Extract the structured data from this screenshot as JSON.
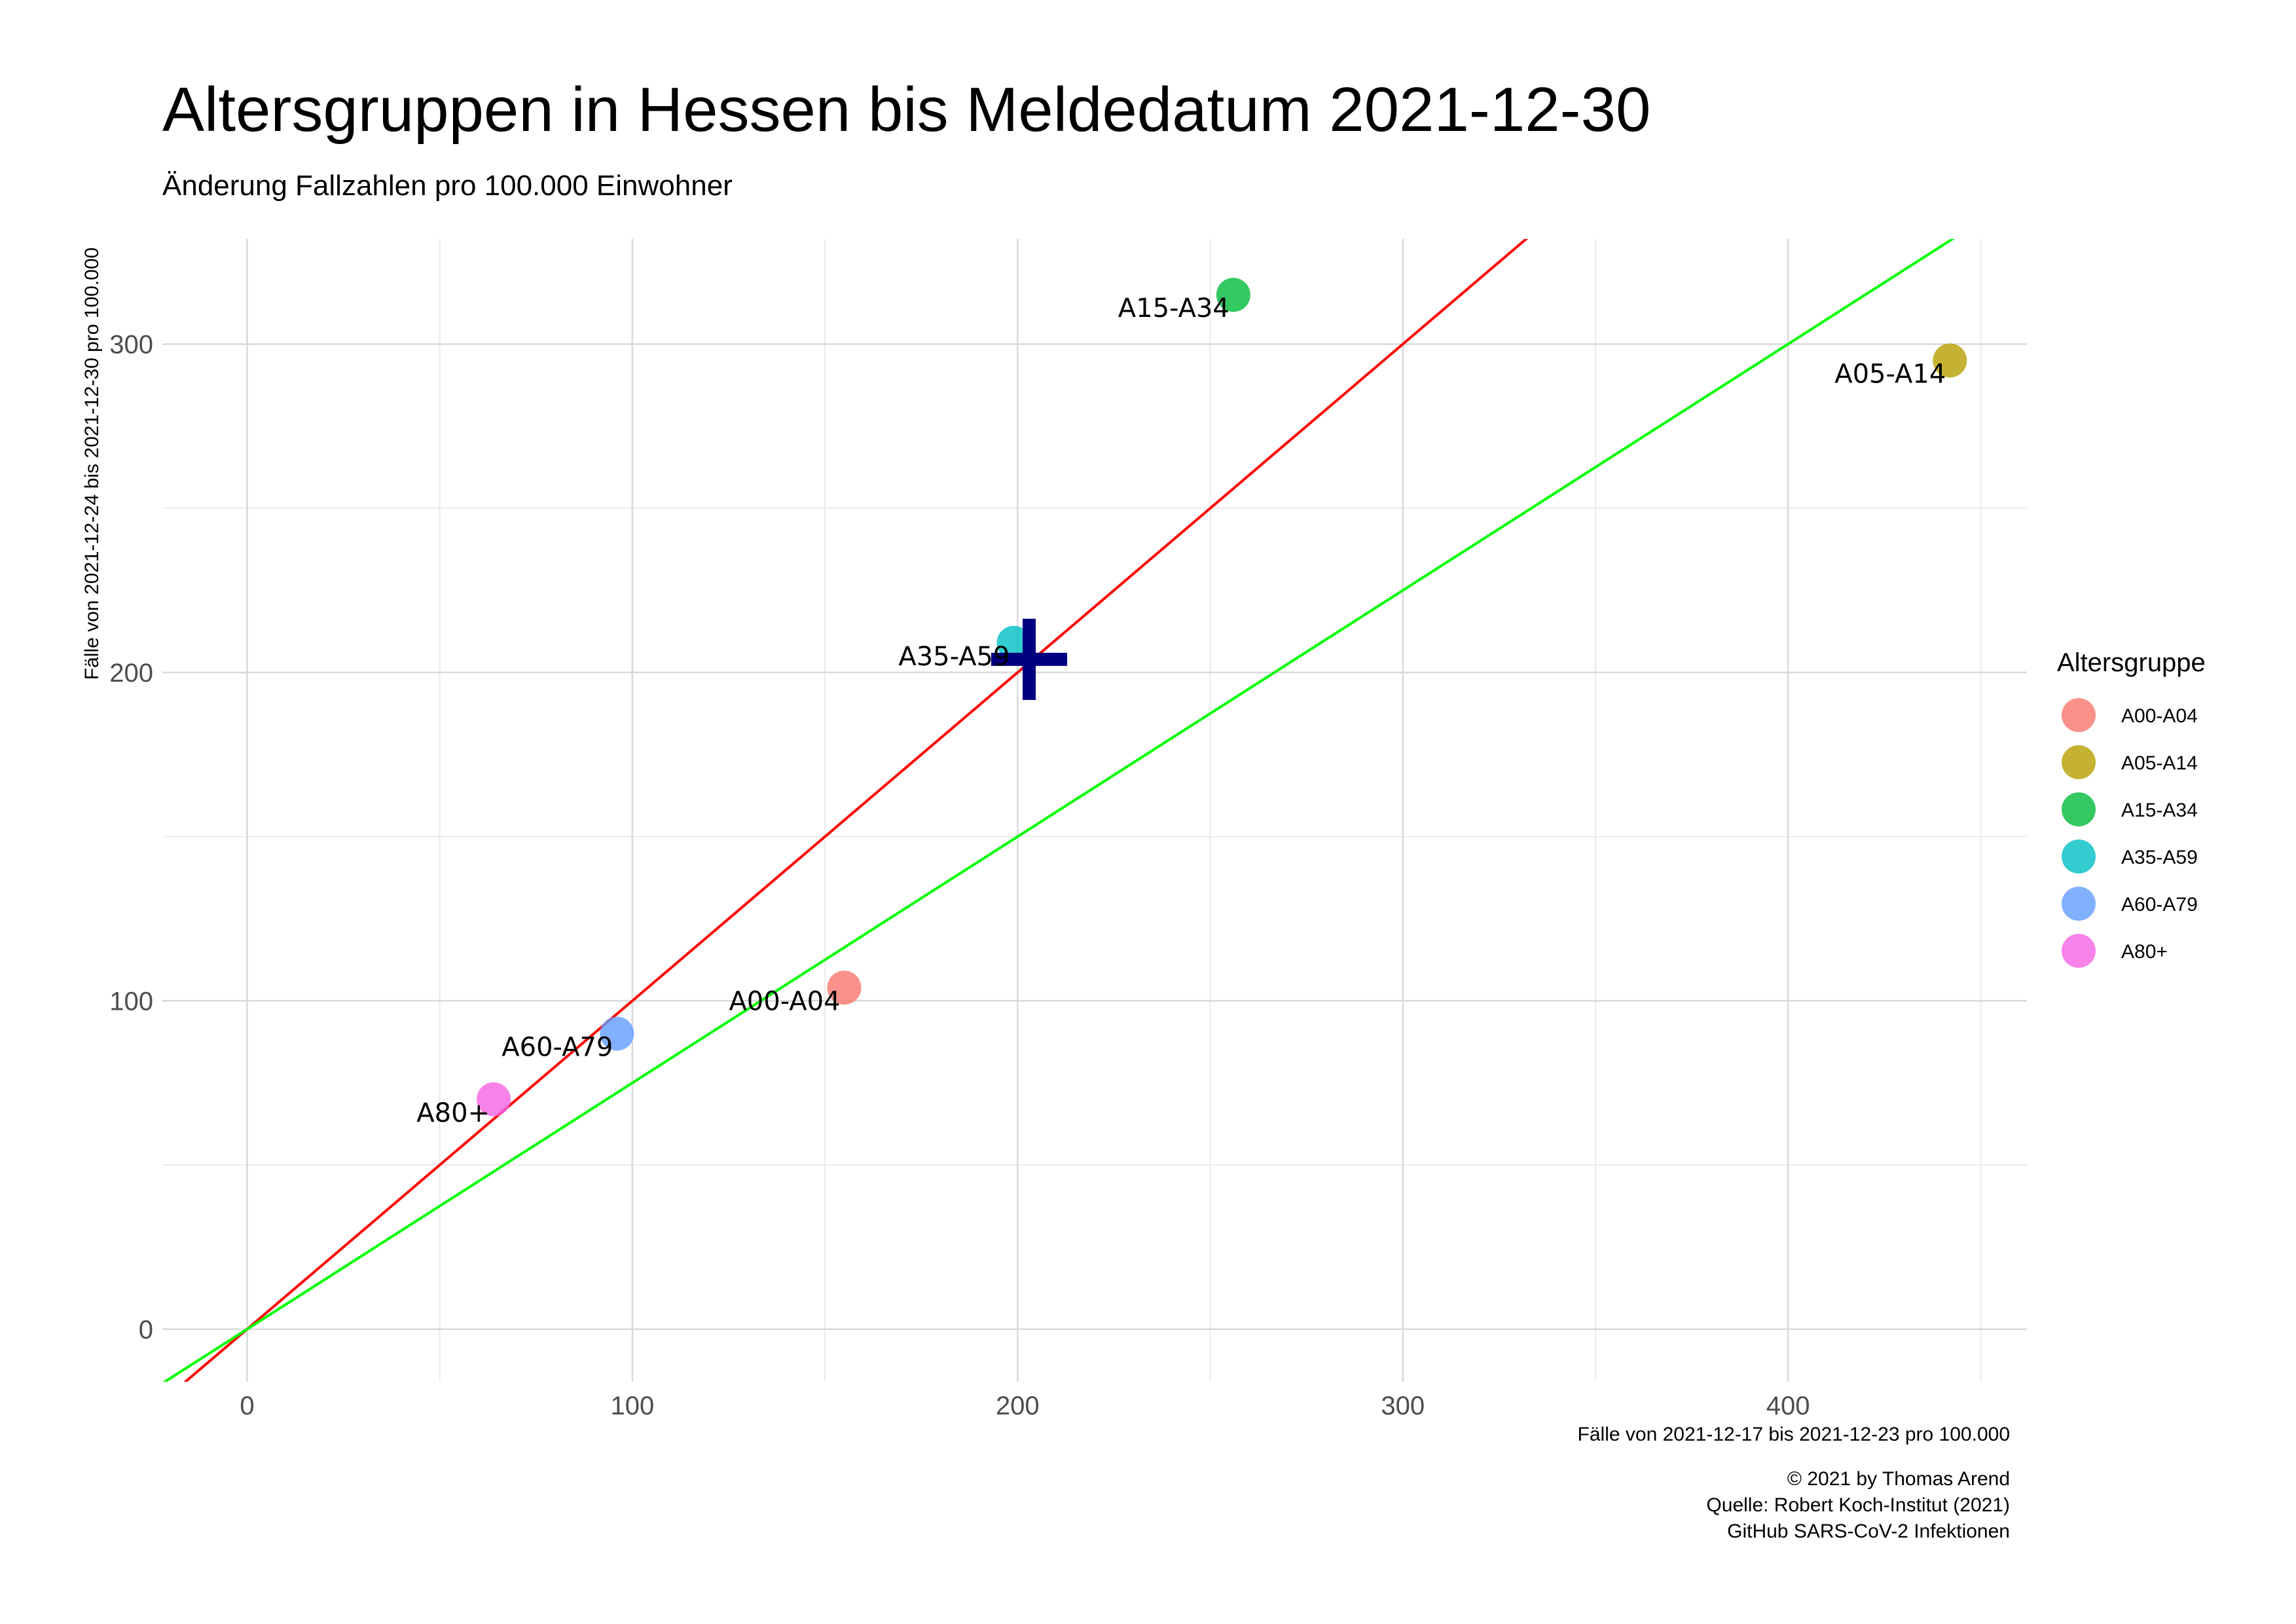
{
  "chart_data": {
    "type": "scatter",
    "title": "Altersgruppen in Hessen bis Meldedatum 2021-12-30",
    "subtitle": "Änderung Fallzahlen pro 100.000 Einwohner",
    "xlabel": "Fälle von 2021-12-17 bis 2021-12-23 pro 100.000",
    "ylabel": "Fälle von 2021-12-24 bis 2021-12-30 pro 100.000",
    "xlim": [
      -22,
      462
    ],
    "ylim": [
      -16,
      332
    ],
    "x_ticks": [
      0,
      100,
      200,
      300,
      400
    ],
    "y_ticks": [
      0,
      100,
      200,
      300
    ],
    "grid": true,
    "legend_title": "Altersgruppe",
    "legend_position": "right",
    "points": [
      {
        "label": "A00-A04",
        "x": 155,
        "y": 104,
        "color": "#F8766D"
      },
      {
        "label": "A05-A14",
        "x": 442,
        "y": 295,
        "color": "#B79F00"
      },
      {
        "label": "A15-A34",
        "x": 256,
        "y": 315,
        "color": "#00BA38"
      },
      {
        "label": "A35-A59",
        "x": 199,
        "y": 209,
        "color": "#00BFC4"
      },
      {
        "label": "A60-A79",
        "x": 96,
        "y": 90,
        "color": "#619CFF"
      },
      {
        "label": "A80+",
        "x": 64,
        "y": 70,
        "color": "#F564E3"
      }
    ],
    "lines": [
      {
        "slope": 1,
        "intercept": 0,
        "color": "#FF0000"
      },
      {
        "slope": 0.75,
        "intercept": 0,
        "color": "#00FF00"
      }
    ],
    "mean_marker": {
      "x": 203,
      "y": 204,
      "color": "#000080",
      "symbol": "+"
    }
  },
  "caption": {
    "line1": "© 2021 by Thomas Arend",
    "line2": "Quelle: Robert Koch-Institut (2021)",
    "line3": "GitHub SARS-CoV-2 Infektionen"
  }
}
